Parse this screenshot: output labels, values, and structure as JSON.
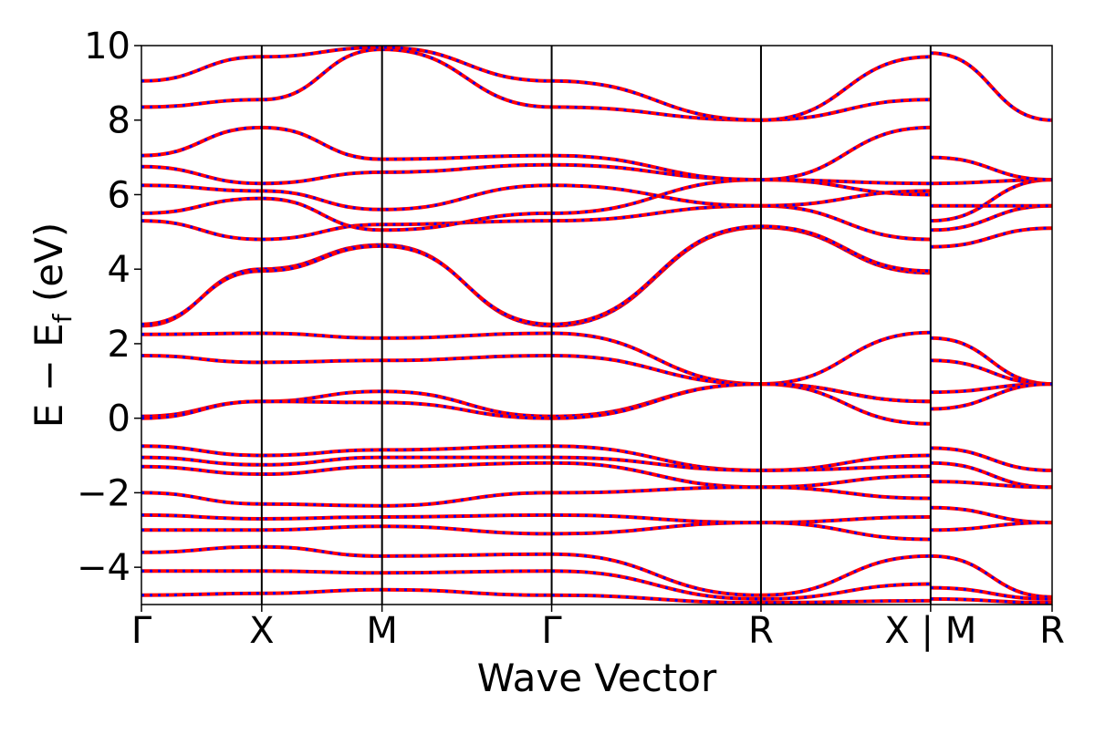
{
  "chart_data": {
    "type": "line",
    "title": "",
    "xlabel": "Wave Vector",
    "ylabel": {
      "main": "E − E",
      "subscript": "f",
      "unit": " (eV)"
    },
    "ylim": [
      -5,
      10
    ],
    "yticks": [
      -4,
      -2,
      0,
      2,
      4,
      6,
      8,
      10
    ],
    "ytick_labels": [
      "−4",
      "−2",
      "0",
      "2",
      "4",
      "6",
      "8",
      "10"
    ],
    "grid": false,
    "legend": "none",
    "x": [
      0,
      1,
      2,
      3.41,
      5.15,
      6.56,
      7.57
    ],
    "xtick_labels": [
      "Γ",
      "X",
      "M",
      "Γ",
      "R",
      "X | M",
      "R"
    ],
    "high_symbol_segments": [
      {
        "from": "Γ",
        "to": "X",
        "x": [
          0,
          1
        ]
      },
      {
        "from": "X",
        "to": "M",
        "x": [
          1,
          2
        ]
      },
      {
        "from": "M",
        "to": "Γ",
        "x": [
          2,
          3.41
        ]
      },
      {
        "from": "Γ",
        "to": "R",
        "x": [
          3.41,
          5.15
        ]
      },
      {
        "from": "R",
        "to": "X",
        "x": [
          5.15,
          6.56
        ]
      },
      {
        "from": "M",
        "to": "R",
        "x": [
          6.56,
          7.57
        ]
      }
    ],
    "series_colors": {
      "series_a": "#ff0000",
      "series_b": "#0000ff"
    },
    "series": [
      {
        "values": [
          2.48,
          4.0,
          4.65,
          2.48,
          5.12,
          3.9,
          null
        ]
      },
      {
        "values": [
          2.52,
          3.95,
          4.62,
          2.52,
          5.15,
          3.95,
          null
        ]
      },
      {
        "values": [
          2.25,
          2.28,
          2.15,
          2.28,
          0.92,
          2.3,
          null
        ]
      },
      {
        "values": [
          1.68,
          1.5,
          1.55,
          1.68,
          0.92,
          0.45,
          null
        ]
      },
      {
        "values": [
          0.05,
          0.45,
          0.72,
          0.05,
          0.92,
          -0.15,
          null
        ]
      },
      {
        "values": [
          0.0,
          0.45,
          0.42,
          0.0,
          0.92,
          0.45,
          null
        ]
      },
      {
        "values": [
          -0.75,
          -1.0,
          -0.85,
          -0.75,
          -1.4,
          -1.0,
          null
        ]
      },
      {
        "values": [
          -1.05,
          -1.25,
          -1.05,
          -1.05,
          -1.4,
          -1.3,
          null
        ]
      },
      {
        "values": [
          -1.3,
          -1.5,
          -1.3,
          -1.2,
          -1.85,
          -1.55,
          null
        ]
      },
      {
        "values": [
          -2.0,
          -2.3,
          -2.35,
          -2.0,
          -1.85,
          -2.15,
          null
        ]
      },
      {
        "values": [
          -2.6,
          -2.7,
          -2.65,
          -2.6,
          -2.8,
          -2.65,
          null
        ]
      },
      {
        "values": [
          -3.0,
          -3.0,
          -2.9,
          -3.1,
          -2.8,
          -3.25,
          null
        ]
      },
      {
        "values": [
          -3.6,
          -3.45,
          -3.7,
          -3.65,
          -4.75,
          -3.7,
          null
        ]
      },
      {
        "values": [
          -4.1,
          -4.1,
          -4.15,
          -4.1,
          -4.85,
          -4.45,
          null
        ]
      },
      {
        "values": [
          -4.75,
          -4.7,
          -4.6,
          -4.75,
          -4.95,
          -4.9,
          null
        ]
      },
      {
        "values": [
          5.3,
          4.8,
          5.2,
          5.3,
          5.7,
          4.8,
          null
        ]
      },
      {
        "values": [
          5.5,
          5.9,
          5.05,
          5.5,
          6.4,
          6.0,
          null
        ]
      },
      {
        "values": [
          6.25,
          6.1,
          5.6,
          6.25,
          5.7,
          6.1,
          null
        ]
      },
      {
        "values": [
          6.75,
          6.3,
          6.6,
          6.8,
          6.4,
          6.3,
          null
        ]
      },
      {
        "values": [
          7.05,
          7.8,
          6.95,
          7.05,
          6.4,
          7.8,
          null
        ]
      },
      {
        "values": [
          8.35,
          8.55,
          9.9,
          8.35,
          8.0,
          8.55,
          null
        ]
      },
      {
        "values": [
          9.05,
          9.7,
          9.95,
          9.05,
          8.0,
          9.7,
          null
        ]
      },
      {
        "values": [
          null,
          null,
          null,
          null,
          null,
          null,
          8.0
        ]
      }
    ],
    "right_segment_series": [
      {
        "values": [
          2.15,
          0.92
        ]
      },
      {
        "values": [
          1.55,
          0.92
        ]
      },
      {
        "values": [
          0.7,
          0.92
        ]
      },
      {
        "values": [
          0.25,
          0.92
        ]
      },
      {
        "values": [
          -0.8,
          -1.4
        ]
      },
      {
        "values": [
          -1.2,
          -1.85
        ]
      },
      {
        "values": [
          -1.7,
          -1.85
        ]
      },
      {
        "values": [
          -2.4,
          -2.8
        ]
      },
      {
        "values": [
          -3.0,
          -2.8
        ]
      },
      {
        "values": [
          -3.7,
          -4.8
        ]
      },
      {
        "values": [
          -4.55,
          -4.85
        ]
      },
      {
        "values": [
          -4.85,
          -4.95
        ]
      },
      {
        "values": [
          4.6,
          5.1
        ]
      },
      {
        "values": [
          5.05,
          5.7
        ]
      },
      {
        "values": [
          5.3,
          6.4
        ]
      },
      {
        "values": [
          5.7,
          5.7
        ]
      },
      {
        "values": [
          6.3,
          6.4
        ]
      },
      {
        "values": [
          7.0,
          6.4
        ]
      },
      {
        "values": [
          9.8,
          8.0
        ]
      }
    ]
  }
}
